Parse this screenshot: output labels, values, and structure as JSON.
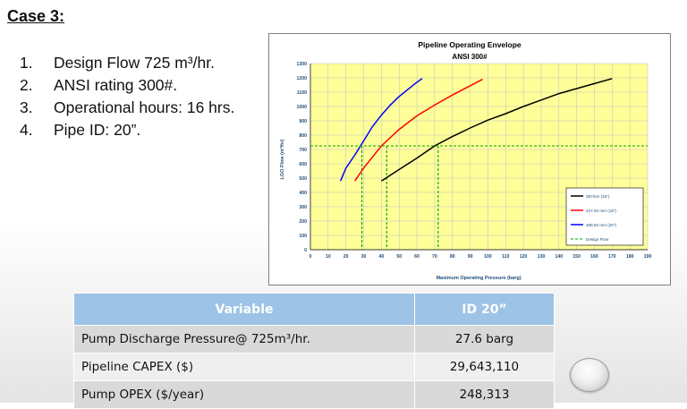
{
  "case_title": "Case 3:",
  "requirements": [
    {
      "num": "1.",
      "text": "Design Flow 725 m³/hr."
    },
    {
      "num": "2.",
      "text": "ANSI rating 300#."
    },
    {
      "num": "3.",
      "text": "Operational hours: 16 hrs."
    },
    {
      "num": "4.",
      "text": "Pipe ID: 20”."
    }
  ],
  "chart_data": {
    "type": "line",
    "title": "Pipeline Operating Envelope",
    "subtitle": "ANSI 300#",
    "xlabel": "Maximum Operating Pressure (barg)",
    "ylabel": "LGO Flow (m³/hr)",
    "xlim": [
      0,
      190
    ],
    "ylim": [
      0,
      1300
    ],
    "xticks": [
      "0",
      "10",
      "20",
      "30",
      "40",
      "50",
      "60",
      "70",
      "80",
      "90",
      "100",
      "110",
      "120",
      "130",
      "140",
      "150",
      "160",
      "170",
      "180",
      "190"
    ],
    "yticks": [
      "0",
      "100",
      "200",
      "300",
      "400",
      "500",
      "600",
      "700",
      "800",
      "900",
      "1000",
      "1100",
      "1200",
      "1300"
    ],
    "grid": true,
    "plot_background": "#ffff99",
    "legend_position": "bottom-right",
    "series": [
      {
        "name": "387mm (16\")",
        "color": "#000000",
        "x": [
          40,
          50,
          60,
          70,
          80,
          90,
          100,
          110,
          120,
          130,
          140,
          150,
          160,
          170
        ],
        "y": [
          480,
          560,
          640,
          725,
          790,
          850,
          905,
          950,
          1000,
          1045,
          1090,
          1125,
          1160,
          1195
        ]
      },
      {
        "name": "437.94 mm (18\")",
        "color": "#ff0000",
        "x": [
          25,
          30,
          40,
          50,
          60,
          70,
          80,
          90,
          97
        ],
        "y": [
          480,
          570,
          725,
          840,
          935,
          1010,
          1080,
          1145,
          1190
        ]
      },
      {
        "name": "488.94 mm (20\")",
        "color": "#0000ff",
        "x": [
          17,
          20,
          25,
          30,
          35,
          40,
          45,
          50,
          55,
          60,
          63
        ],
        "y": [
          480,
          570,
          660,
          760,
          860,
          940,
          1010,
          1070,
          1120,
          1170,
          1195
        ]
      },
      {
        "name": "Design Flow",
        "color": "#00a000",
        "dashed": true,
        "x": [
          0,
          190
        ],
        "y": [
          725,
          725
        ]
      }
    ],
    "drop_lines": {
      "x": [
        29,
        43,
        72
      ],
      "y": 725,
      "color": "#00a000"
    }
  },
  "table": {
    "headers": [
      "Variable",
      "ID 20”"
    ],
    "rows": [
      {
        "variable": "Pump Discharge Pressure@ 725m³/hr.",
        "value": "27.6 barg"
      },
      {
        "variable": "Pipeline CAPEX ($)",
        "value": "29,643,110"
      },
      {
        "variable": "Pump OPEX ($/year)",
        "value": "248,313"
      }
    ]
  }
}
